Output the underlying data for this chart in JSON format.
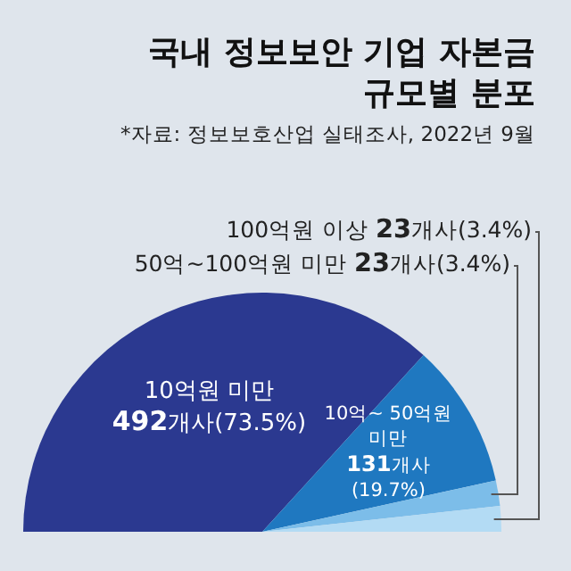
{
  "chart_data": {
    "type": "pie",
    "title": "국내 정보보안 기업 자본금 규모별 분포",
    "annotations": [
      "*자료: 정보보호산업 실태조사, 2022년 9월"
    ],
    "categories": [
      "10억원 미만",
      "10억~ 50억원 미만",
      "50억~100억원 미만",
      "100억원 이상"
    ],
    "values": [
      492,
      131,
      23,
      23
    ],
    "value_labels": [
      "492개사(73.5%)",
      "131개사(19.7%)",
      "23개사(3.4%)",
      "23개사(3.4%)"
    ],
    "colors": [
      "#2b3990",
      "#1f78c0",
      "#7cbde9",
      "#b3dbf4"
    ]
  }
}
